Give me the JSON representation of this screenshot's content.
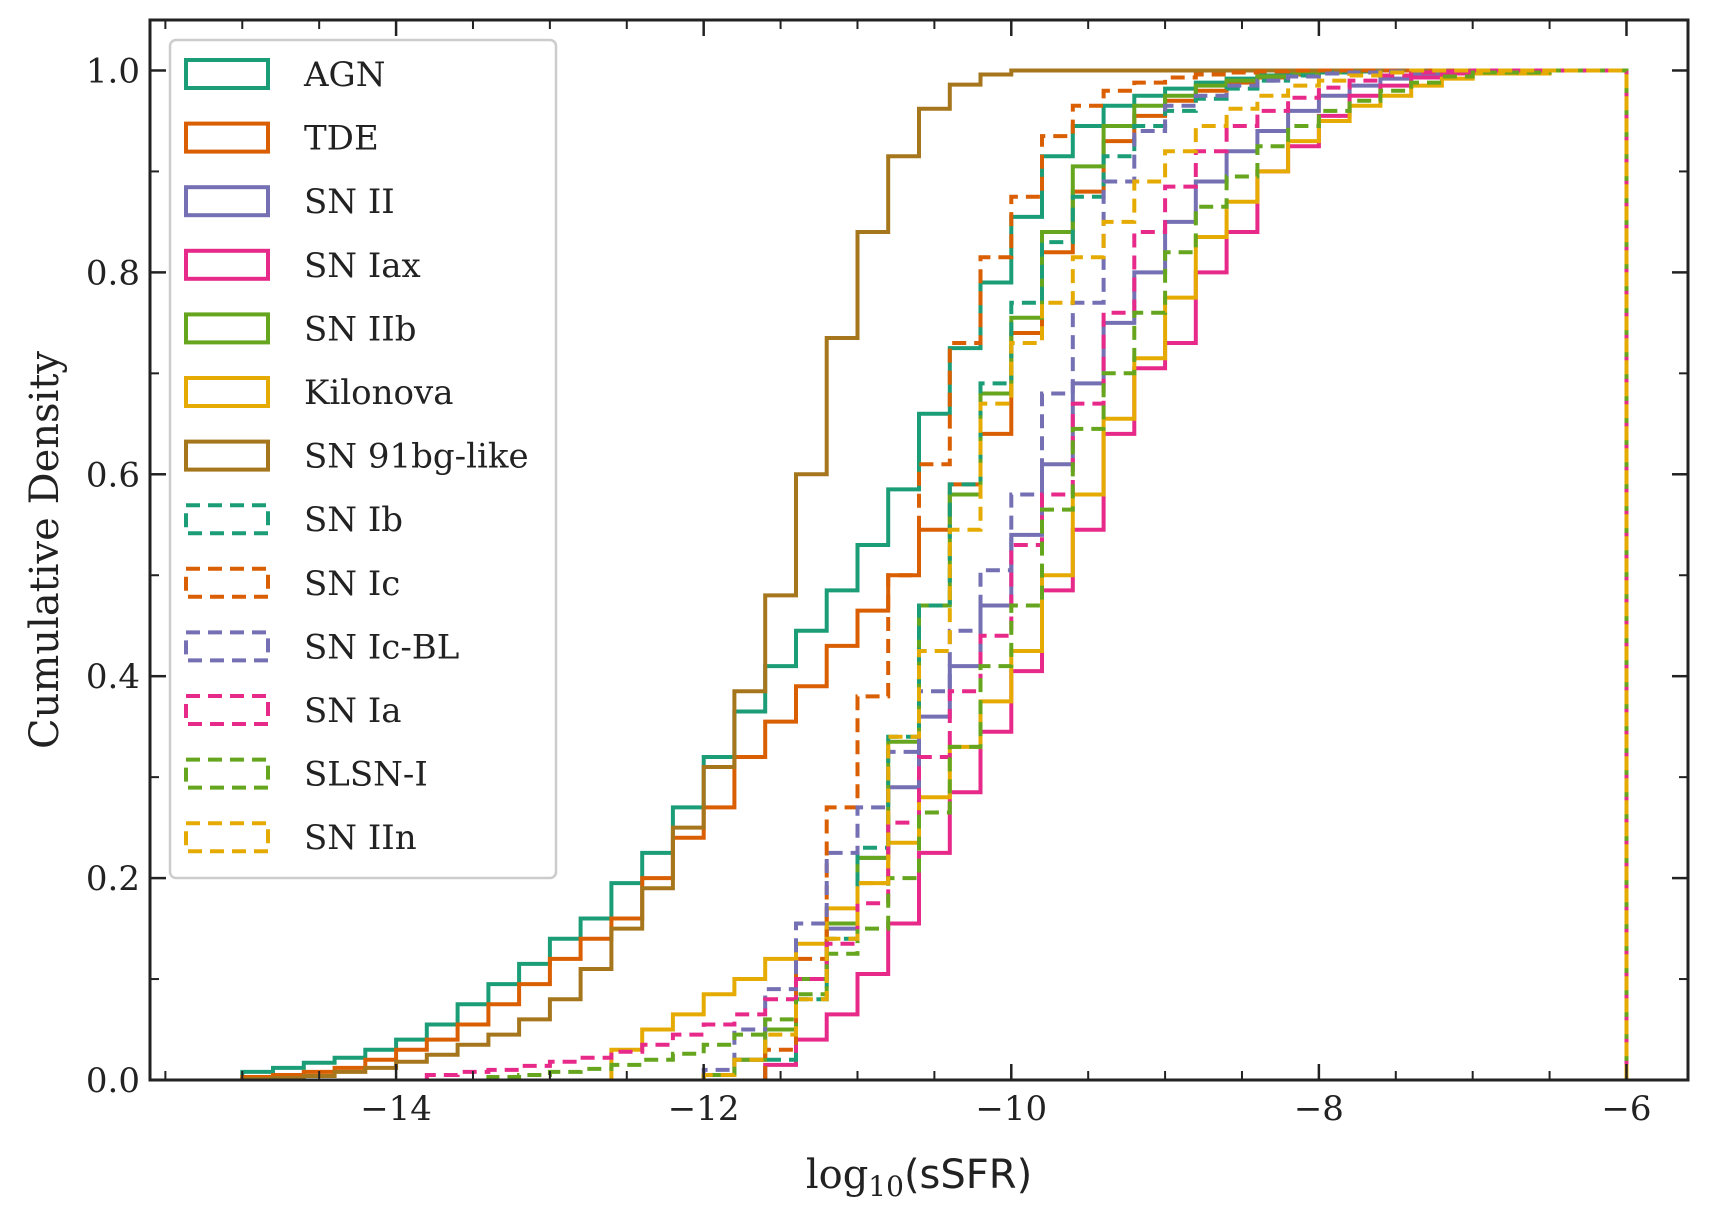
{
  "chart_data": {
    "type": "line",
    "title": "",
    "xlabel": "log10(sSFR)",
    "xlabel_main": "log",
    "xlabel_sub": "10",
    "xlabel_arg": "(sSFR)",
    "ylabel": "Cumulative Density",
    "xlim": [
      -15.6,
      -5.6
    ],
    "ylim": [
      0,
      1.05
    ],
    "x_ticks": [
      -14,
      -12,
      -10,
      -8,
      -6
    ],
    "x_tick_labels": [
      "−14",
      "−12",
      "−10",
      "−8",
      "−6"
    ],
    "y_ticks": [
      0,
      0.2,
      0.4,
      0.6,
      0.8,
      1.0
    ],
    "y_tick_labels": [
      "0.0",
      "0.2",
      "0.4",
      "0.6",
      "0.8",
      "1.0"
    ],
    "grid": false,
    "legend_position": "top-left",
    "step_style": "histogram-step cumulative",
    "series": [
      {
        "name": "AGN",
        "color": "#1b9e77",
        "dash": false,
        "x": [
          -15.0,
          -14.8,
          -14.6,
          -14.4,
          -14.2,
          -14.0,
          -13.8,
          -13.6,
          -13.4,
          -13.2,
          -13.0,
          -12.8,
          -12.6,
          -12.4,
          -12.2,
          -12.0,
          -11.8,
          -11.6,
          -11.4,
          -11.2,
          -11.0,
          -10.8,
          -10.6,
          -10.4,
          -10.2,
          -10.0,
          -9.8,
          -9.6,
          -9.4,
          -9.2,
          -9.0,
          -8.8,
          -8.6,
          -8.4,
          -8.2,
          -8.0,
          -7.8,
          -7.6,
          -7.4,
          -7.2,
          -7.0,
          -6.5,
          -6.0
        ],
        "y": [
          0.008,
          0.012,
          0.017,
          0.022,
          0.03,
          0.04,
          0.055,
          0.075,
          0.095,
          0.115,
          0.14,
          0.16,
          0.195,
          0.225,
          0.27,
          0.32,
          0.365,
          0.41,
          0.445,
          0.485,
          0.53,
          0.585,
          0.66,
          0.725,
          0.79,
          0.855,
          0.915,
          0.945,
          0.965,
          0.975,
          0.982,
          0.988,
          0.992,
          0.995,
          0.997,
          0.998,
          0.999,
          1.0,
          1.0,
          1.0,
          1.0,
          1.0,
          0.0
        ]
      },
      {
        "name": "TDE",
        "color": "#d95f02",
        "dash": false,
        "x": [
          -15.0,
          -14.8,
          -14.6,
          -14.4,
          -14.2,
          -14.0,
          -13.8,
          -13.6,
          -13.4,
          -13.2,
          -13.0,
          -12.8,
          -12.6,
          -12.4,
          -12.2,
          -12.0,
          -11.8,
          -11.6,
          -11.4,
          -11.2,
          -11.0,
          -10.8,
          -10.6,
          -10.4,
          -10.2,
          -10.0,
          -9.8,
          -9.6,
          -9.4,
          -9.2,
          -9.0,
          -8.8,
          -8.6,
          -8.4,
          -8.2,
          -8.0,
          -7.8,
          -7.6,
          -7.4,
          -7.2,
          -7.0,
          -6.5,
          -6.0
        ],
        "y": [
          0.003,
          0.005,
          0.008,
          0.012,
          0.02,
          0.03,
          0.04,
          0.055,
          0.075,
          0.095,
          0.12,
          0.14,
          0.16,
          0.2,
          0.24,
          0.27,
          0.32,
          0.355,
          0.39,
          0.43,
          0.465,
          0.5,
          0.545,
          0.59,
          0.64,
          0.74,
          0.82,
          0.88,
          0.93,
          0.955,
          0.97,
          0.98,
          0.988,
          0.993,
          0.996,
          0.998,
          0.999,
          1.0,
          1.0,
          1.0,
          1.0,
          1.0,
          0.0
        ]
      },
      {
        "name": "SN II",
        "color": "#7570b3",
        "dash": false,
        "x": [
          -12.0,
          -11.8,
          -11.6,
          -11.4,
          -11.2,
          -11.0,
          -10.8,
          -10.6,
          -10.4,
          -10.2,
          -10.0,
          -9.8,
          -9.6,
          -9.4,
          -9.2,
          -9.0,
          -8.8,
          -8.6,
          -8.4,
          -8.2,
          -8.0,
          -7.8,
          -7.6,
          -7.4,
          -7.2,
          -7.0,
          -6.5,
          -6.0
        ],
        "y": [
          0.005,
          0.02,
          0.05,
          0.1,
          0.15,
          0.22,
          0.29,
          0.36,
          0.41,
          0.47,
          0.54,
          0.61,
          0.69,
          0.75,
          0.8,
          0.85,
          0.89,
          0.92,
          0.94,
          0.96,
          0.975,
          0.985,
          0.992,
          0.996,
          0.998,
          1.0,
          1.0,
          0.0
        ]
      },
      {
        "name": "SN Iax",
        "color": "#e7298a",
        "dash": false,
        "x": [
          -11.6,
          -11.4,
          -11.2,
          -11.0,
          -10.8,
          -10.6,
          -10.4,
          -10.2,
          -10.0,
          -9.8,
          -9.6,
          -9.4,
          -9.2,
          -9.0,
          -8.8,
          -8.6,
          -8.4,
          -8.2,
          -8.0,
          -7.8,
          -7.6,
          -7.4,
          -7.2,
          -7.0,
          -6.5,
          -6.0
        ],
        "y": [
          0.015,
          0.04,
          0.065,
          0.105,
          0.155,
          0.225,
          0.285,
          0.345,
          0.405,
          0.485,
          0.545,
          0.64,
          0.705,
          0.73,
          0.8,
          0.84,
          0.9,
          0.925,
          0.955,
          0.975,
          0.985,
          0.993,
          0.997,
          1.0,
          1.0,
          0.0
        ]
      },
      {
        "name": "SN IIb",
        "color": "#66a61e",
        "dash": false,
        "x": [
          -12.0,
          -11.8,
          -11.6,
          -11.4,
          -11.2,
          -11.0,
          -10.8,
          -10.6,
          -10.4,
          -10.2,
          -10.0,
          -9.8,
          -9.6,
          -9.4,
          -9.2,
          -9.0,
          -8.8,
          -8.6,
          -8.4,
          -8.2,
          -8.0,
          -7.8,
          -7.6,
          -7.4,
          -7.2,
          -7.0,
          -6.5,
          -6.0
        ],
        "y": [
          0.005,
          0.02,
          0.05,
          0.1,
          0.155,
          0.22,
          0.335,
          0.47,
          0.58,
          0.68,
          0.755,
          0.84,
          0.905,
          0.945,
          0.965,
          0.975,
          0.985,
          0.99,
          0.994,
          0.997,
          0.998,
          0.999,
          1.0,
          1.0,
          1.0,
          1.0,
          1.0,
          0.0
        ]
      },
      {
        "name": "Kilonova",
        "color": "#e6ab02",
        "dash": false,
        "x": [
          -12.6,
          -12.4,
          -12.2,
          -12.0,
          -11.8,
          -11.6,
          -11.4,
          -11.2,
          -11.0,
          -10.8,
          -10.6,
          -10.4,
          -10.2,
          -10.0,
          -9.8,
          -9.6,
          -9.4,
          -9.2,
          -9.0,
          -8.8,
          -8.6,
          -8.4,
          -8.2,
          -8.0,
          -7.8,
          -7.6,
          -7.4,
          -7.2,
          -7.0,
          -6.5,
          -6.0
        ],
        "y": [
          0.03,
          0.05,
          0.065,
          0.085,
          0.1,
          0.12,
          0.135,
          0.17,
          0.195,
          0.235,
          0.28,
          0.33,
          0.375,
          0.425,
          0.5,
          0.58,
          0.655,
          0.715,
          0.775,
          0.835,
          0.87,
          0.9,
          0.93,
          0.95,
          0.965,
          0.975,
          0.985,
          0.992,
          0.997,
          1.0,
          0.0
        ]
      },
      {
        "name": "SN 91bg-like",
        "color": "#a6761d",
        "dash": false,
        "x": [
          -15.0,
          -14.8,
          -14.6,
          -14.4,
          -14.2,
          -14.0,
          -13.8,
          -13.6,
          -13.4,
          -13.2,
          -13.0,
          -12.8,
          -12.6,
          -12.4,
          -12.2,
          -12.0,
          -11.8,
          -11.6,
          -11.4,
          -11.2,
          -11.0,
          -10.8,
          -10.6,
          -10.4,
          -10.2,
          -10.0,
          -9.8,
          -9.6,
          -9.4,
          -9.2,
          -9.0,
          -8.5,
          -8.0,
          -7.0,
          -6.0
        ],
        "y": [
          0.001,
          0.002,
          0.004,
          0.008,
          0.012,
          0.018,
          0.025,
          0.035,
          0.045,
          0.06,
          0.08,
          0.11,
          0.15,
          0.19,
          0.25,
          0.31,
          0.385,
          0.48,
          0.6,
          0.735,
          0.84,
          0.915,
          0.962,
          0.986,
          0.996,
          1.0,
          1.0,
          1.0,
          1.0,
          1.0,
          1.0,
          1.0,
          1.0,
          1.0,
          0.0
        ]
      },
      {
        "name": "SN Ib",
        "color": "#1b9e77",
        "dash": true,
        "x": [
          -11.6,
          -11.4,
          -11.2,
          -11.0,
          -10.8,
          -10.6,
          -10.4,
          -10.2,
          -10.0,
          -9.8,
          -9.6,
          -9.4,
          -9.2,
          -9.0,
          -8.8,
          -8.6,
          -8.4,
          -8.2,
          -8.0,
          -7.8,
          -7.6,
          -7.4,
          -7.2,
          -7.0,
          -6.5,
          -6.0
        ],
        "y": [
          0.02,
          0.08,
          0.14,
          0.23,
          0.34,
          0.47,
          0.59,
          0.69,
          0.77,
          0.83,
          0.875,
          0.915,
          0.945,
          0.96,
          0.972,
          0.982,
          0.99,
          0.995,
          0.998,
          0.999,
          1.0,
          1.0,
          1.0,
          1.0,
          1.0,
          0.0
        ]
      },
      {
        "name": "SN Ic",
        "color": "#d95f02",
        "dash": true,
        "x": [
          -11.6,
          -11.4,
          -11.2,
          -11.0,
          -10.8,
          -10.6,
          -10.4,
          -10.2,
          -10.0,
          -9.8,
          -9.6,
          -9.4,
          -9.2,
          -9.0,
          -8.8,
          -8.6,
          -8.4,
          -8.2,
          -8.0,
          -7.8,
          -7.6,
          -7.4,
          -7.2,
          -7.0,
          -6.5,
          -6.0
        ],
        "y": [
          0.03,
          0.12,
          0.27,
          0.38,
          0.5,
          0.61,
          0.73,
          0.815,
          0.875,
          0.935,
          0.965,
          0.98,
          0.988,
          0.993,
          0.996,
          0.998,
          0.999,
          1.0,
          1.0,
          1.0,
          1.0,
          1.0,
          1.0,
          1.0,
          1.0,
          0.0
        ]
      },
      {
        "name": "SN Ic-BL",
        "color": "#7570b3",
        "dash": true,
        "x": [
          -12.0,
          -11.8,
          -11.6,
          -11.4,
          -11.2,
          -11.0,
          -10.8,
          -10.6,
          -10.4,
          -10.2,
          -10.0,
          -9.8,
          -9.6,
          -9.4,
          -9.2,
          -9.0,
          -8.8,
          -8.6,
          -8.4,
          -8.2,
          -8.0,
          -7.8,
          -7.6,
          -7.4,
          -7.2,
          -7.0,
          -6.5,
          -6.0
        ],
        "y": [
          0.01,
          0.05,
          0.09,
          0.155,
          0.225,
          0.27,
          0.325,
          0.385,
          0.445,
          0.505,
          0.58,
          0.68,
          0.77,
          0.89,
          0.94,
          0.965,
          0.975,
          0.985,
          0.99,
          0.994,
          0.997,
          0.998,
          0.999,
          1.0,
          1.0,
          1.0,
          1.0,
          0.0
        ]
      },
      {
        "name": "SN Ia",
        "color": "#e7298a",
        "dash": true,
        "x": [
          -13.8,
          -13.6,
          -13.4,
          -13.2,
          -13.0,
          -12.8,
          -12.6,
          -12.4,
          -12.2,
          -12.0,
          -11.8,
          -11.6,
          -11.4,
          -11.2,
          -11.0,
          -10.8,
          -10.6,
          -10.4,
          -10.2,
          -10.0,
          -9.8,
          -9.6,
          -9.4,
          -9.2,
          -9.0,
          -8.8,
          -8.6,
          -8.4,
          -8.2,
          -8.0,
          -7.8,
          -7.6,
          -7.4,
          -7.2,
          -7.0,
          -6.5,
          -6.0
        ],
        "y": [
          0.005,
          0.008,
          0.01,
          0.014,
          0.018,
          0.022,
          0.028,
          0.035,
          0.045,
          0.055,
          0.065,
          0.08,
          0.1,
          0.135,
          0.175,
          0.255,
          0.32,
          0.385,
          0.44,
          0.53,
          0.58,
          0.67,
          0.76,
          0.84,
          0.885,
          0.92,
          0.945,
          0.96,
          0.973,
          0.983,
          0.99,
          0.995,
          0.998,
          0.999,
          1.0,
          1.0,
          0.0
        ]
      },
      {
        "name": "SLSN-I",
        "color": "#66a61e",
        "dash": true,
        "x": [
          -13.4,
          -13.2,
          -13.0,
          -12.8,
          -12.6,
          -12.4,
          -12.2,
          -12.0,
          -11.8,
          -11.6,
          -11.4,
          -11.2,
          -11.0,
          -10.8,
          -10.6,
          -10.4,
          -10.2,
          -10.0,
          -9.8,
          -9.6,
          -9.4,
          -9.2,
          -9.0,
          -8.8,
          -8.6,
          -8.4,
          -8.2,
          -8.0,
          -7.8,
          -7.6,
          -7.4,
          -7.2,
          -7.0,
          -6.5,
          -6.0
        ],
        "y": [
          0.003,
          0.005,
          0.008,
          0.011,
          0.015,
          0.02,
          0.026,
          0.035,
          0.045,
          0.06,
          0.085,
          0.125,
          0.15,
          0.2,
          0.265,
          0.33,
          0.41,
          0.47,
          0.565,
          0.645,
          0.7,
          0.76,
          0.82,
          0.865,
          0.895,
          0.925,
          0.945,
          0.96,
          0.97,
          0.98,
          0.988,
          0.994,
          0.998,
          1.0,
          0.0
        ]
      },
      {
        "name": "SN IIn",
        "color": "#e6ab02",
        "dash": true,
        "x": [
          -12.0,
          -11.8,
          -11.6,
          -11.4,
          -11.2,
          -11.0,
          -10.8,
          -10.6,
          -10.4,
          -10.2,
          -10.0,
          -9.8,
          -9.6,
          -9.4,
          -9.2,
          -9.0,
          -8.8,
          -8.6,
          -8.4,
          -8.2,
          -8.0,
          -7.8,
          -7.6,
          -7.4,
          -7.2,
          -7.0,
          -6.5,
          -6.0
        ],
        "y": [
          0.005,
          0.02,
          0.045,
          0.08,
          0.14,
          0.195,
          0.34,
          0.425,
          0.545,
          0.67,
          0.73,
          0.77,
          0.815,
          0.85,
          0.89,
          0.92,
          0.945,
          0.962,
          0.975,
          0.985,
          0.99,
          0.995,
          0.998,
          1.0,
          1.0,
          1.0,
          1.0,
          0.0
        ]
      }
    ]
  }
}
